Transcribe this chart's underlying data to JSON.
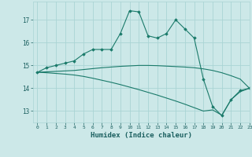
{
  "xlabel": "Humidex (Indice chaleur)",
  "ylabel": "",
  "bg_color": "#cce8e8",
  "grid_color": "#aad4d4",
  "line_color": "#1a7a6a",
  "xlim": [
    -0.5,
    23
  ],
  "ylim": [
    12.5,
    17.8
  ],
  "yticks": [
    13,
    14,
    15,
    16,
    17
  ],
  "xticks": [
    0,
    1,
    2,
    3,
    4,
    5,
    6,
    7,
    8,
    9,
    10,
    11,
    12,
    13,
    14,
    15,
    16,
    17,
    18,
    19,
    20,
    21,
    22,
    23
  ],
  "series": [
    [
      14.7,
      14.9,
      15.0,
      15.1,
      15.2,
      15.5,
      15.7,
      15.7,
      15.7,
      16.4,
      17.4,
      17.35,
      16.3,
      16.2,
      16.4,
      17.0,
      16.6,
      16.2,
      14.4,
      13.2,
      12.8,
      13.5,
      13.9,
      14.0
    ],
    [
      14.7,
      14.72,
      14.74,
      14.76,
      14.78,
      14.82,
      14.86,
      14.9,
      14.93,
      14.96,
      14.98,
      15.0,
      15.0,
      14.99,
      14.97,
      14.95,
      14.93,
      14.9,
      14.85,
      14.78,
      14.68,
      14.55,
      14.4,
      14.0
    ],
    [
      14.7,
      14.68,
      14.65,
      14.62,
      14.58,
      14.52,
      14.44,
      14.35,
      14.26,
      14.16,
      14.05,
      13.94,
      13.82,
      13.7,
      13.57,
      13.44,
      13.3,
      13.15,
      13.0,
      13.05,
      12.82,
      13.5,
      13.85,
      14.0
    ]
  ]
}
